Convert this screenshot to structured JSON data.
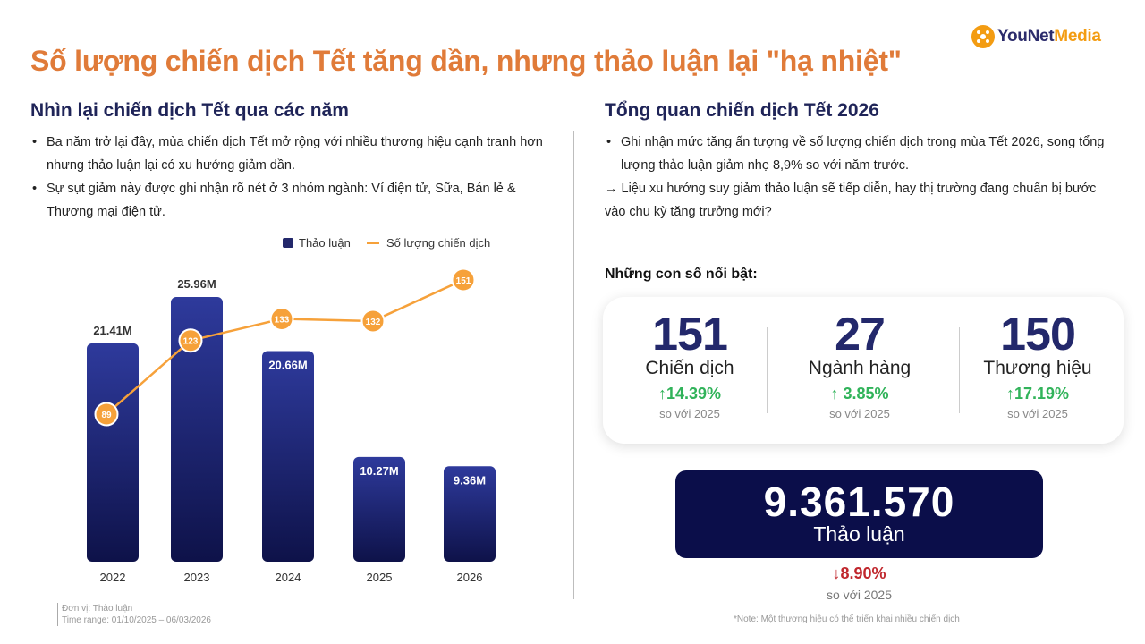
{
  "brand": {
    "logo_text_1": "YouNet",
    "logo_text_2": "Media",
    "color": "#f39c12"
  },
  "main_title": "Số lượng chiến dịch Tết tăng dần, nhưng thảo luận lại \"hạ nhiệt\"",
  "left": {
    "title": "Nhìn lại chiến dịch Tết qua các năm",
    "bullets": [
      "Ba năm trở lại đây, mùa chiến dịch Tết mở rộng với nhiều thương hiệu cạnh tranh hơn nhưng thảo luận lại có xu hướng giảm dần.",
      "Sự sụt giảm này được ghi nhận rõ nét ở 3 nhóm ngành: Ví điện tử, Sữa, Bán lẻ & Thương mại điện tử."
    ]
  },
  "right": {
    "title": "Tổng quan chiến dịch Tết 2026",
    "bullet": "Ghi nhận mức tăng ấn tượng về số lượng chiến dịch trong mùa Tết 2026, song tổng lượng thảo luận giảm nhẹ 8,9% so với năm trước.",
    "arrow_text": "→ Liệu xu hướng suy giảm thảo luận sẽ tiếp diễn, hay thị trường đang chuẩn bị bước vào chu kỳ tăng trưởng mới?",
    "highlights_title": "Những con số nổi bật:",
    "stats": [
      {
        "value": "151",
        "label": "Chiến dịch",
        "change": "↑14.39%",
        "compare": "so với 2025"
      },
      {
        "value": "27",
        "label": "Ngành hàng",
        "change": "↑ 3.85%",
        "compare": "so với 2025"
      },
      {
        "value": "150",
        "label": "Thương hiệu",
        "change": "↑17.19%",
        "compare": "so với 2025"
      }
    ],
    "discussion": {
      "value": "9.361.570",
      "label": "Thảo luận",
      "change": "↓8.90%",
      "compare": "so với 2025"
    },
    "note": "*Note: Một thương hiệu có thể triển khai nhiều chiến dịch"
  },
  "footnote": {
    "unit": "Đơn vị: Thảo luận",
    "time_range": "Time range: 01/10/2025 – 06/03/2026"
  },
  "colors": {
    "bar_top": "#2e3a9c",
    "bar_bottom": "#0e1249",
    "line": "#f6a13a",
    "title": "#e07b39",
    "heading": "#1f2458",
    "up": "#31b35a",
    "down": "#c0272d"
  },
  "chart_data": {
    "type": "bar+line",
    "categories": [
      "2022",
      "2023",
      "2024",
      "2025",
      "2026"
    ],
    "series": [
      {
        "name": "Thảo luận",
        "type": "bar",
        "values": [
          21.41,
          25.96,
          20.66,
          10.27,
          9.36
        ],
        "labels": [
          "21.41M",
          "25.96M",
          "20.66M",
          "10.27M",
          "9.36M"
        ]
      },
      {
        "name": "Số lượng chiến dịch",
        "type": "line",
        "values": [
          89,
          123,
          133,
          132,
          151
        ]
      }
    ],
    "legend_position": "top-right"
  }
}
